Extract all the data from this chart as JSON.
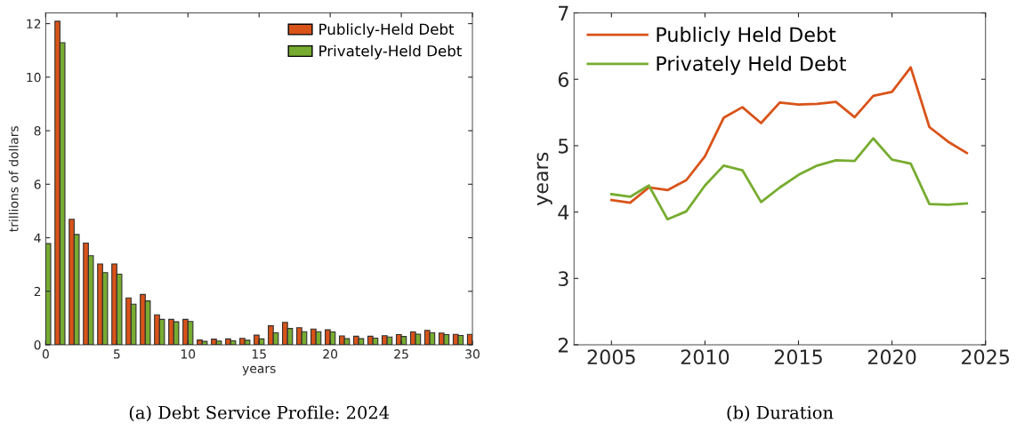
{
  "chart_data": [
    {
      "type": "bar",
      "title": "(a) Debt Service Profile: 2024",
      "xlabel": "years",
      "ylabel": "trillions of dollars",
      "x": [
        0,
        1,
        2,
        3,
        4,
        5,
        6,
        7,
        8,
        9,
        10,
        11,
        12,
        13,
        14,
        15,
        16,
        17,
        18,
        19,
        20,
        21,
        22,
        23,
        24,
        25,
        26,
        27,
        28,
        29,
        30
      ],
      "series": [
        {
          "name": "Publicly-Held Debt",
          "color": "#d95319",
          "values": [
            null,
            12.09,
            4.69,
            3.8,
            3.02,
            3.02,
            1.75,
            1.88,
            1.12,
            0.95,
            0.95,
            0.18,
            0.21,
            0.22,
            0.24,
            0.36,
            0.71,
            0.84,
            0.64,
            0.59,
            0.56,
            0.33,
            0.32,
            0.32,
            0.34,
            0.38,
            0.48,
            0.54,
            0.44,
            0.39,
            0.39
          ]
        },
        {
          "name": "Privately-Held Debt",
          "color": "#77ac30",
          "values": [
            3.78,
            11.29,
            4.12,
            3.33,
            2.7,
            2.64,
            1.52,
            1.64,
            0.95,
            0.86,
            0.87,
            0.13,
            0.14,
            0.15,
            0.17,
            0.22,
            0.45,
            0.61,
            0.49,
            0.49,
            0.48,
            0.23,
            0.23,
            0.25,
            0.29,
            0.31,
            0.4,
            0.45,
            0.38,
            0.35,
            null
          ]
        }
      ],
      "xlim": [
        0,
        30
      ],
      "xticks": [
        0,
        5,
        10,
        15,
        20,
        25,
        30
      ],
      "ylim": [
        0,
        12.4
      ],
      "yticks": [
        0,
        2,
        4,
        6,
        8,
        10,
        12
      ],
      "grid": false,
      "legend": "top right"
    },
    {
      "type": "line",
      "title": "(b) Duration",
      "ylabel": "years",
      "x": [
        2005,
        2006,
        2007,
        2008,
        2009,
        2010,
        2011,
        2012,
        2013,
        2014,
        2015,
        2016,
        2017,
        2018,
        2019,
        2020,
        2021,
        2022,
        2023,
        2024
      ],
      "series": [
        {
          "name": "Publicly Held Debt",
          "color": "#d95319",
          "values": [
            4.18,
            4.14,
            4.37,
            4.33,
            4.48,
            4.84,
            5.42,
            5.58,
            5.34,
            5.65,
            5.62,
            5.63,
            5.66,
            5.43,
            5.75,
            5.81,
            6.18,
            5.28,
            5.06,
            4.89
          ]
        },
        {
          "name": "Privately Held Debt",
          "color": "#77ac30",
          "values": [
            4.27,
            4.23,
            4.4,
            3.89,
            4.01,
            4.4,
            4.7,
            4.63,
            4.15,
            4.37,
            4.56,
            4.7,
            4.78,
            4.77,
            5.11,
            4.79,
            4.73,
            4.12,
            4.11,
            4.13
          ]
        }
      ],
      "xlim": [
        2003,
        2025
      ],
      "xticks": [
        2005,
        2010,
        2015,
        2020,
        2025
      ],
      "ylim": [
        2,
        7
      ],
      "yticks": [
        2,
        3,
        4,
        5,
        6,
        7
      ],
      "grid": false,
      "legend": "top left",
      "marker": "none",
      "line_style": "solid"
    }
  ]
}
